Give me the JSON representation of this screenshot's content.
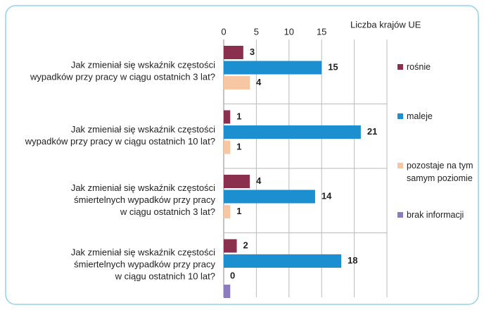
{
  "chart_data": {
    "type": "bar",
    "orientation": "horizontal",
    "xlabel": "Liczba krajów UE",
    "categories": [
      [
        "Jak zmieniał się wskaźnik częstości",
        "wypadków przy pracy w ciągu ostatnich 3 lat?"
      ],
      [
        "Jak zmieniał się wskaźnik częstości",
        "wypadków przy pracy w ciągu ostatnich 10 lat?"
      ],
      [
        "Jak zmieniał się wskaźnik częstości",
        "śmiertelnych wypadków przy pracy",
        "w ciągu ostatnich 3 lat?"
      ],
      [
        "Jak zmieniał się wskaźnik częstości",
        "śmiertelnych wypadków przy pracy",
        "w ciągu ostatnich 10 lat?"
      ]
    ],
    "series": [
      {
        "name": "rośnie",
        "color": "#8b2f4f",
        "values": [
          3,
          1,
          4,
          2
        ],
        "data_labels": true
      },
      {
        "name": "maleje",
        "color": "#1b8fcf",
        "values": [
          15,
          21,
          14,
          18
        ],
        "data_labels": true
      },
      {
        "name": "pozostaje na tym samym poziomie",
        "color": "#f7c6a3",
        "values": [
          4,
          1,
          1,
          0
        ],
        "data_labels": true
      },
      {
        "name": "brak informacji",
        "color": "#8c7bbd",
        "values": [
          0,
          0,
          0,
          1
        ],
        "data_labels": false
      }
    ],
    "xlim": [
      0,
      25
    ],
    "xticks": [
      0,
      5,
      10,
      15
    ],
    "xgrid": [
      0,
      5,
      10,
      15,
      20,
      25
    ],
    "legend": "right"
  }
}
